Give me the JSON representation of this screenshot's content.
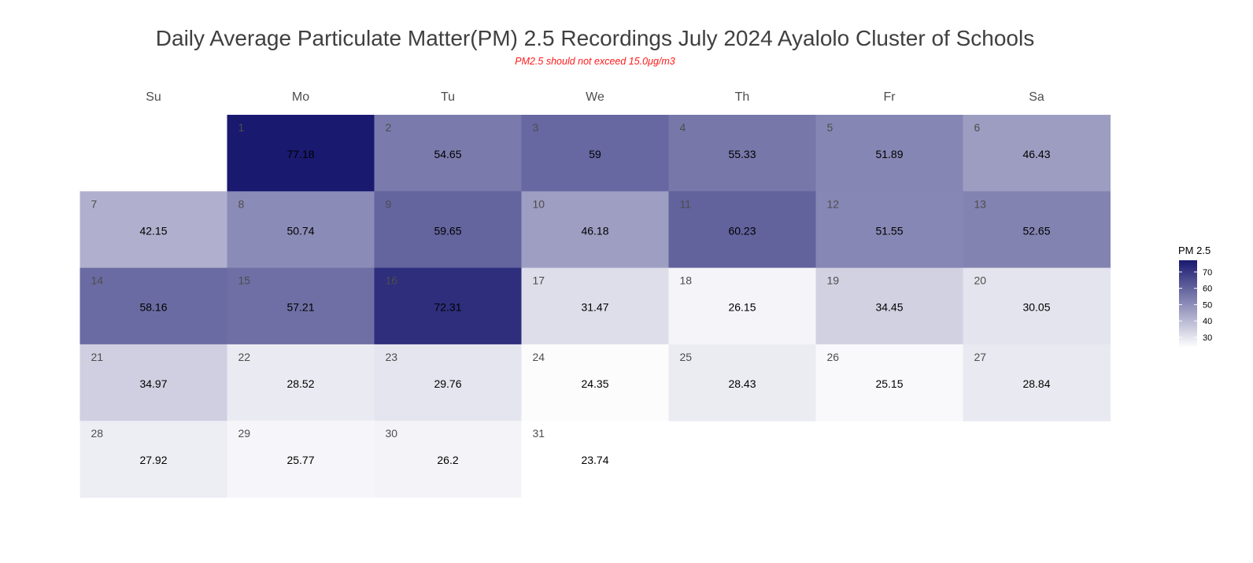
{
  "chart_data": {
    "type": "heatmap",
    "title": "Daily Average Particulate Matter(PM) 2.5 Recordings July 2024 Ayalolo Cluster of Schools",
    "subtitle": "PM2.5 should not exceed 15.0μg/m3",
    "weekdays": [
      "Su",
      "Mo",
      "Tu",
      "We",
      "Th",
      "Fr",
      "Sa"
    ],
    "first_weekday_index": 1,
    "days": [
      1,
      2,
      3,
      4,
      5,
      6,
      7,
      8,
      9,
      10,
      11,
      12,
      13,
      14,
      15,
      16,
      17,
      18,
      19,
      20,
      21,
      22,
      23,
      24,
      25,
      26,
      27,
      28,
      29,
      30,
      31
    ],
    "values": [
      77.18,
      54.65,
      59,
      55.33,
      51.89,
      46.43,
      42.15,
      50.74,
      59.65,
      46.18,
      60.23,
      51.55,
      52.65,
      58.16,
      57.21,
      72.31,
      31.47,
      26.15,
      34.45,
      30.05,
      34.97,
      28.52,
      29.76,
      24.35,
      28.43,
      25.15,
      28.84,
      27.92,
      25.77,
      26.2,
      23.74
    ],
    "value_labels": [
      "77.18",
      "54.65",
      "59",
      "55.33",
      "51.89",
      "46.43",
      "42.15",
      "50.74",
      "59.65",
      "46.18",
      "60.23",
      "51.55",
      "52.65",
      "58.16",
      "57.21",
      "72.31",
      "31.47",
      "26.15",
      "34.45",
      "30.05",
      "34.97",
      "28.52",
      "29.76",
      "24.35",
      "28.43",
      "25.15",
      "28.84",
      "27.92",
      "25.77",
      "26.2",
      "23.74"
    ],
    "legend": {
      "title": "PM 2.5",
      "ticks": [
        30,
        40,
        50,
        60,
        70
      ],
      "range": [
        23.74,
        77.18
      ],
      "position": "right"
    },
    "color_scale": {
      "low": "#ffffff",
      "high": "#191970"
    }
  }
}
